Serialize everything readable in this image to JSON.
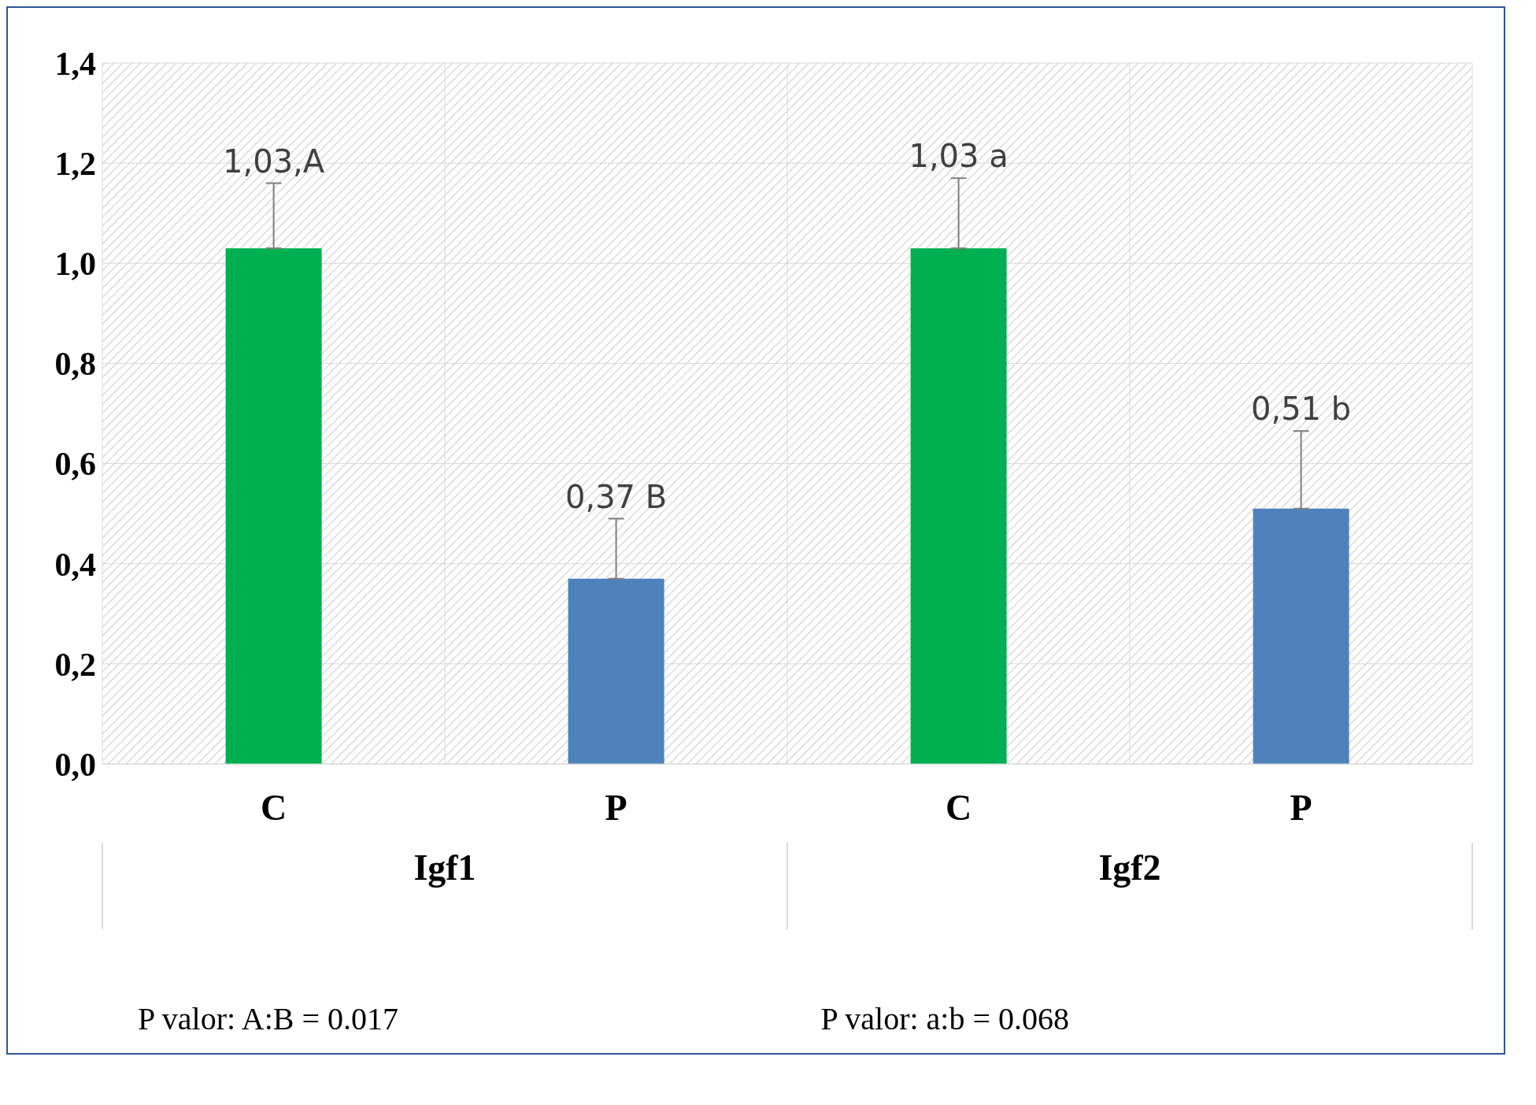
{
  "chart_data": {
    "type": "bar",
    "categories": [
      "C",
      "P",
      "C",
      "P"
    ],
    "values": [
      1.03,
      0.37,
      1.03,
      0.51
    ],
    "colors": [
      "#00b050",
      "#4f81bd",
      "#00b050",
      "#4f81bd"
    ],
    "errors": [
      [
        1.03,
        1.16
      ],
      [
        0.37,
        0.49
      ],
      [
        1.03,
        1.17
      ],
      [
        0.51,
        0.665
      ]
    ],
    "value_labels": [
      "1,03,A",
      "0,37 B",
      "1,03 a",
      "0,51 b"
    ],
    "ylim": [
      0,
      1.4
    ],
    "yticks": [
      {
        "value": 0,
        "label": "0,0"
      },
      {
        "value": 0.2,
        "label": "0,2"
      },
      {
        "value": 0.4,
        "label": "0,4"
      },
      {
        "value": 0.6,
        "label": "0,6"
      },
      {
        "value": 0.8,
        "label": "0,8"
      },
      {
        "value": 1.0,
        "label": "1,0"
      },
      {
        "value": 1.2,
        "label": "1,2"
      },
      {
        "value": 1.4,
        "label": "1,4"
      }
    ],
    "grid": true,
    "annotations": [
      "Igf1",
      "Igf2",
      "P valor: A:B = 0.017",
      "P valor: a:b = 0.068"
    ]
  }
}
